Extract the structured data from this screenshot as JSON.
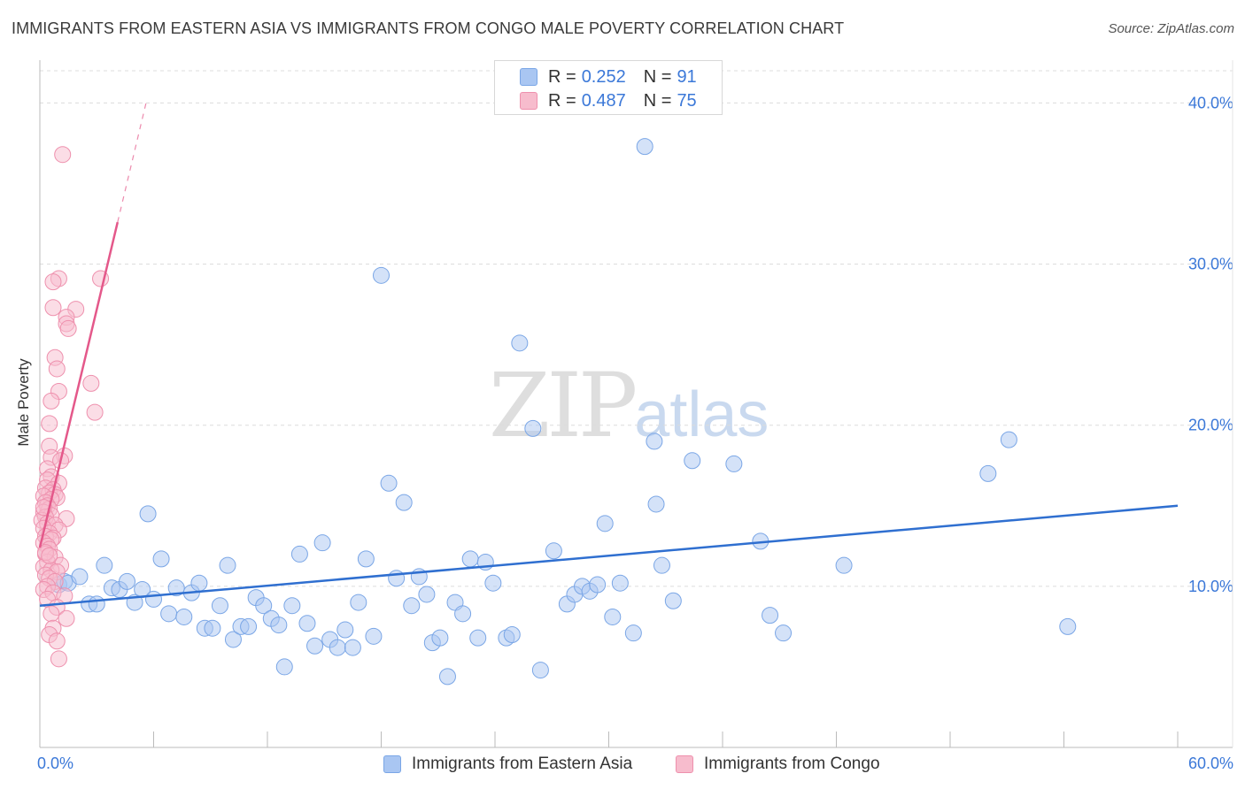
{
  "title": "IMMIGRANTS FROM EASTERN ASIA VS IMMIGRANTS FROM CONGO MALE POVERTY CORRELATION CHART",
  "source": "Source: ZipAtlas.com",
  "watermark": {
    "big": "ZIP",
    "small": "atlas"
  },
  "legend_top": {
    "rows": [
      {
        "r_label": "R =",
        "r_value": "0.252",
        "n_label": "N =",
        "n_value": "91",
        "color": "#a9c6f2",
        "border": "#7aa6e6"
      },
      {
        "r_label": "R =",
        "r_value": "0.487",
        "n_label": "N =",
        "n_value": "75",
        "color": "#f7bccd",
        "border": "#ee90ad"
      }
    ]
  },
  "chart_data": {
    "type": "scatter",
    "title": "IMMIGRANTS FROM EASTERN ASIA VS IMMIGRANTS FROM CONGO MALE POVERTY CORRELATION CHART",
    "xlabel": "",
    "ylabel": "Male Poverty",
    "xlim": [
      0,
      60
    ],
    "ylim": [
      0,
      42
    ],
    "x_tick_labels": [
      "0.0%",
      "60.0%"
    ],
    "y_ticks": [
      10,
      20,
      30,
      40
    ],
    "y_tick_labels": [
      "10.0%",
      "20.0%",
      "30.0%",
      "40.0%"
    ],
    "grid": true,
    "series": [
      {
        "name": "Immigrants from Eastern Asia",
        "color": "#a9c6f2",
        "stroke": "#7aa6e6",
        "line_color": "#2f6fd0",
        "trend": {
          "x0": 0,
          "y0": 8.8,
          "x1": 60,
          "y1": 15.0
        },
        "points": [
          [
            1.0,
            10.1
          ],
          [
            1.3,
            10.3
          ],
          [
            1.5,
            10.2
          ],
          [
            2.1,
            10.6
          ],
          [
            2.6,
            8.9
          ],
          [
            3.0,
            8.9
          ],
          [
            3.4,
            11.3
          ],
          [
            3.8,
            9.9
          ],
          [
            4.2,
            9.8
          ],
          [
            4.6,
            10.3
          ],
          [
            5.0,
            9.0
          ],
          [
            5.4,
            9.8
          ],
          [
            5.7,
            14.5
          ],
          [
            6.0,
            9.2
          ],
          [
            6.4,
            11.7
          ],
          [
            6.8,
            8.3
          ],
          [
            7.2,
            9.9
          ],
          [
            7.6,
            8.1
          ],
          [
            8.0,
            9.6
          ],
          [
            8.4,
            10.2
          ],
          [
            8.7,
            7.4
          ],
          [
            9.1,
            7.4
          ],
          [
            9.5,
            8.8
          ],
          [
            9.9,
            11.3
          ],
          [
            10.2,
            6.7
          ],
          [
            10.6,
            7.5
          ],
          [
            11.0,
            7.5
          ],
          [
            11.4,
            9.3
          ],
          [
            11.8,
            8.8
          ],
          [
            12.2,
            8.0
          ],
          [
            12.6,
            7.6
          ],
          [
            12.9,
            5.0
          ],
          [
            13.3,
            8.8
          ],
          [
            13.7,
            12.0
          ],
          [
            14.1,
            7.7
          ],
          [
            14.5,
            6.3
          ],
          [
            14.9,
            12.7
          ],
          [
            15.3,
            6.7
          ],
          [
            15.7,
            6.2
          ],
          [
            16.1,
            7.3
          ],
          [
            16.5,
            6.2
          ],
          [
            16.8,
            9.0
          ],
          [
            17.2,
            11.7
          ],
          [
            17.6,
            6.9
          ],
          [
            18.0,
            29.3
          ],
          [
            18.4,
            16.4
          ],
          [
            18.8,
            10.5
          ],
          [
            19.2,
            15.2
          ],
          [
            19.6,
            8.8
          ],
          [
            20.0,
            10.6
          ],
          [
            20.4,
            9.5
          ],
          [
            20.7,
            6.5
          ],
          [
            21.1,
            6.8
          ],
          [
            21.5,
            4.4
          ],
          [
            21.9,
            9.0
          ],
          [
            22.3,
            8.3
          ],
          [
            22.7,
            11.7
          ],
          [
            23.1,
            6.8
          ],
          [
            23.5,
            11.5
          ],
          [
            23.9,
            10.2
          ],
          [
            24.6,
            6.8
          ],
          [
            24.9,
            7.0
          ],
          [
            25.3,
            25.1
          ],
          [
            26.0,
            19.8
          ],
          [
            26.4,
            4.8
          ],
          [
            27.1,
            12.2
          ],
          [
            27.8,
            8.9
          ],
          [
            28.2,
            9.5
          ],
          [
            28.6,
            10.0
          ],
          [
            29.0,
            9.7
          ],
          [
            29.4,
            10.1
          ],
          [
            29.8,
            13.9
          ],
          [
            30.2,
            8.1
          ],
          [
            30.6,
            10.2
          ],
          [
            31.3,
            7.1
          ],
          [
            31.9,
            37.3
          ],
          [
            32.4,
            19.0
          ],
          [
            32.5,
            15.1
          ],
          [
            32.8,
            11.3
          ],
          [
            33.4,
            9.1
          ],
          [
            34.4,
            17.8
          ],
          [
            36.6,
            17.6
          ],
          [
            38.0,
            12.8
          ],
          [
            38.5,
            8.2
          ],
          [
            39.2,
            7.1
          ],
          [
            42.4,
            11.3
          ],
          [
            50.0,
            17.0
          ],
          [
            51.1,
            19.1
          ],
          [
            54.2,
            7.5
          ]
        ]
      },
      {
        "name": "Immigrants from Congo",
        "color": "#f7bccd",
        "stroke": "#ee90ad",
        "line_color": "#e4588a",
        "trend": {
          "x0": 0,
          "y0": 12.4,
          "x1": 4.1,
          "y1": 32.6
        },
        "trend_dashed": {
          "x0": 4.1,
          "y0": 32.6,
          "x1": 5.6,
          "y1": 40.0
        },
        "points": [
          [
            1.2,
            36.8
          ],
          [
            1.0,
            29.1
          ],
          [
            3.2,
            29.1
          ],
          [
            0.7,
            28.9
          ],
          [
            0.7,
            27.3
          ],
          [
            1.9,
            27.2
          ],
          [
            1.4,
            26.7
          ],
          [
            1.4,
            26.3
          ],
          [
            1.5,
            26.0
          ],
          [
            0.8,
            24.2
          ],
          [
            0.9,
            23.5
          ],
          [
            2.7,
            22.6
          ],
          [
            1.0,
            22.1
          ],
          [
            0.6,
            21.5
          ],
          [
            2.9,
            20.8
          ],
          [
            0.5,
            20.1
          ],
          [
            0.5,
            18.7
          ],
          [
            1.3,
            18.1
          ],
          [
            0.6,
            18.0
          ],
          [
            1.1,
            17.8
          ],
          [
            0.4,
            17.3
          ],
          [
            0.6,
            16.8
          ],
          [
            0.4,
            16.6
          ],
          [
            1.0,
            16.4
          ],
          [
            0.3,
            16.1
          ],
          [
            0.7,
            16.0
          ],
          [
            0.5,
            15.8
          ],
          [
            0.8,
            15.7
          ],
          [
            0.2,
            15.6
          ],
          [
            0.9,
            15.5
          ],
          [
            0.6,
            15.4
          ],
          [
            0.3,
            15.2
          ],
          [
            0.4,
            15.0
          ],
          [
            0.5,
            14.8
          ],
          [
            0.2,
            14.6
          ],
          [
            0.6,
            14.4
          ],
          [
            0.3,
            14.3
          ],
          [
            1.4,
            14.2
          ],
          [
            0.1,
            14.1
          ],
          [
            0.4,
            13.9
          ],
          [
            0.8,
            13.8
          ],
          [
            0.2,
            13.6
          ],
          [
            1.0,
            13.5
          ],
          [
            0.5,
            13.3
          ],
          [
            0.3,
            13.1
          ],
          [
            0.7,
            13.0
          ],
          [
            0.6,
            12.9
          ],
          [
            0.2,
            12.7
          ],
          [
            0.4,
            12.5
          ],
          [
            0.5,
            12.3
          ],
          [
            0.3,
            12.0
          ],
          [
            0.8,
            11.8
          ],
          [
            0.4,
            11.5
          ],
          [
            1.1,
            11.3
          ],
          [
            0.2,
            11.2
          ],
          [
            0.6,
            11.0
          ],
          [
            0.9,
            10.9
          ],
          [
            0.3,
            10.7
          ],
          [
            0.5,
            10.5
          ],
          [
            0.8,
            10.3
          ],
          [
            0.4,
            10.0
          ],
          [
            0.2,
            9.8
          ],
          [
            0.7,
            9.6
          ],
          [
            1.3,
            9.4
          ],
          [
            0.4,
            9.2
          ],
          [
            0.9,
            8.7
          ],
          [
            0.6,
            8.3
          ],
          [
            1.4,
            8.0
          ],
          [
            0.7,
            7.4
          ],
          [
            0.5,
            7.0
          ],
          [
            0.9,
            6.6
          ],
          [
            1.0,
            5.5
          ],
          [
            0.3,
            12.1
          ],
          [
            0.2,
            14.9
          ],
          [
            0.5,
            11.9
          ]
        ]
      }
    ]
  },
  "bottom_legend": [
    {
      "label": "Immigrants from Eastern Asia",
      "color": "#a9c6f2",
      "border": "#7aa6e6"
    },
    {
      "label": "Immigrants from Congo",
      "color": "#f7bccd",
      "border": "#ee90ad"
    }
  ]
}
